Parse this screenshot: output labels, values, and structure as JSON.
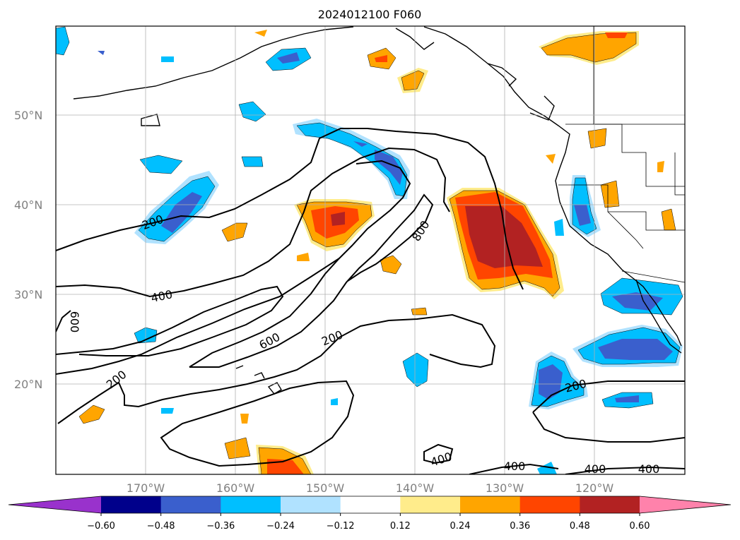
{
  "title": "2024012100 F060",
  "longitude_labels": [
    "170°W",
    "160°W",
    "150°W",
    "140°W",
    "130°W",
    "120°W"
  ],
  "latitude_labels": [
    "50°N",
    "40°N",
    "30°N",
    "20°N"
  ],
  "contour_labels": [
    "200",
    "400",
    "600",
    "600",
    "200",
    "800",
    "200",
    "200",
    "400",
    "400",
    "400",
    "400"
  ],
  "colorbar": {
    "ticks": [
      "−0.60",
      "−0.48",
      "−0.36",
      "−0.24",
      "−0.12",
      "0.12",
      "0.24",
      "0.36",
      "0.48",
      "0.60"
    ],
    "colors": [
      "#9932cc",
      "#00008b",
      "#3a5fcd",
      "#00bfff",
      "#b0e2ff",
      "#ffffff",
      "#ffec8b",
      "#ffa500",
      "#ff4500",
      "#b22222",
      "#ff82ab"
    ]
  },
  "fill_colors": {
    "neg_light": "#b0e2ff",
    "neg_mid": "#00bfff",
    "neg_dark": "#3a5fcd",
    "pos_light": "#ffec8b",
    "pos_mid": "#ffa500",
    "pos_strong": "#ff4500",
    "pos_dark": "#b22222"
  }
}
